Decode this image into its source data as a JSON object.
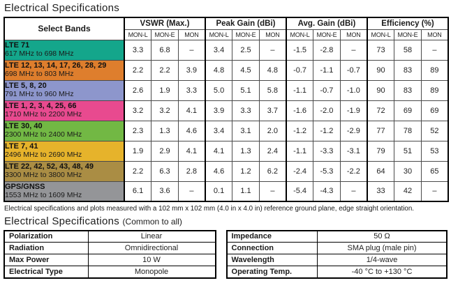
{
  "title": "Electrical Specifications",
  "main_table": {
    "band_header": "Select Bands",
    "groups": [
      {
        "label": "VSWR (Max.)"
      },
      {
        "label": "Peak Gain (dBi)"
      },
      {
        "label": "Avg. Gain (dBi)"
      },
      {
        "label": "Efficiency (%)"
      }
    ],
    "subcols": [
      "MON-L",
      "MON-E",
      "MON"
    ],
    "rows": [
      {
        "name": "LTE 71",
        "freq": "617 MHz to 698 MHz",
        "color": "#14a68b",
        "values": [
          "3.3",
          "6.8",
          "–",
          "3.4",
          "2.5",
          "–",
          "-1.5",
          "-2.8",
          "–",
          "73",
          "58",
          "–"
        ]
      },
      {
        "name": "LTE 12, 13, 14, 17, 26, 28, 29",
        "freq": "698 MHz to 803 MHz",
        "color": "#de7e2d",
        "values": [
          "2.2",
          "2.2",
          "3.9",
          "4.8",
          "4.5",
          "4.8",
          "-0.7",
          "-1.1",
          "-0.7",
          "90",
          "83",
          "89"
        ]
      },
      {
        "name": "LTE 5, 8, 20",
        "freq": "791 MHz to 960 MHz",
        "color": "#8d96cc",
        "values": [
          "2.6",
          "1.9",
          "3.3",
          "5.0",
          "5.1",
          "5.8",
          "-1.1",
          "-0.7",
          "-1.0",
          "90",
          "83",
          "89"
        ]
      },
      {
        "name": "LTE 1, 2, 3, 4, 25, 66",
        "freq": "1710 MHz to 2200 MHz",
        "color": "#e84a8f",
        "values": [
          "3.2",
          "3.2",
          "4.1",
          "3.9",
          "3.3",
          "3.7",
          "-1.6",
          "-2.0",
          "-1.9",
          "72",
          "69",
          "69"
        ]
      },
      {
        "name": "LTE 30, 40",
        "freq": "2300 MHz to 2400 MHz",
        "color": "#72b844",
        "values": [
          "2.3",
          "1.3",
          "4.6",
          "3.4",
          "3.1",
          "2.0",
          "-1.2",
          "-1.2",
          "-2.9",
          "77",
          "78",
          "52"
        ]
      },
      {
        "name": "LTE 7, 41",
        "freq": "2496 MHz to 2690 MHz",
        "color": "#e6b32b",
        "values": [
          "1.9",
          "2.9",
          "4.1",
          "4.1",
          "1.3",
          "2.4",
          "-1.1",
          "-3.3",
          "-3.1",
          "79",
          "51",
          "53"
        ]
      },
      {
        "name": "LTE 22, 42, 52, 43, 48, 49",
        "freq": "3300 MHz to 3800 MHz",
        "color": "#aa8d44",
        "values": [
          "2.2",
          "6.3",
          "2.8",
          "4.6",
          "1.2",
          "6.2",
          "-2.4",
          "-5.3",
          "-2.2",
          "64",
          "30",
          "65"
        ]
      },
      {
        "name": "GPS/GNSS",
        "freq": "1553 MHz to 1609 MHz",
        "color": "#949598",
        "values": [
          "6.1",
          "3.6",
          "–",
          "0.1",
          "1.1",
          "–",
          "-5.4",
          "-4.3",
          "–",
          "33",
          "42",
          "–"
        ]
      }
    ]
  },
  "footnote": "Electrical specifications and plots measured with a 102 mm x 102 mm (4.0 in x 4.0 in) reference ground plane, edge straight orientation.",
  "common_title": "Electrical Specifications",
  "common_title_suffix": "(Common to all)",
  "common_tables": {
    "left": {
      "rows": [
        {
          "label": "Polarization",
          "value": "Linear"
        },
        {
          "label": "Radiation",
          "value": "Omnidirectional"
        },
        {
          "label": "Max Power",
          "value": "10 W"
        },
        {
          "label": "Electrical Type",
          "value": "Monopole"
        }
      ]
    },
    "right": {
      "rows": [
        {
          "label": "Impedance",
          "value": "50 Ω"
        },
        {
          "label": "Connection",
          "value": "SMA plug (male pin)"
        },
        {
          "label": "Wavelength",
          "value": "1/4-wave"
        },
        {
          "label": "Operating Temp.",
          "value": "-40 °C to +130 °C"
        }
      ]
    }
  }
}
